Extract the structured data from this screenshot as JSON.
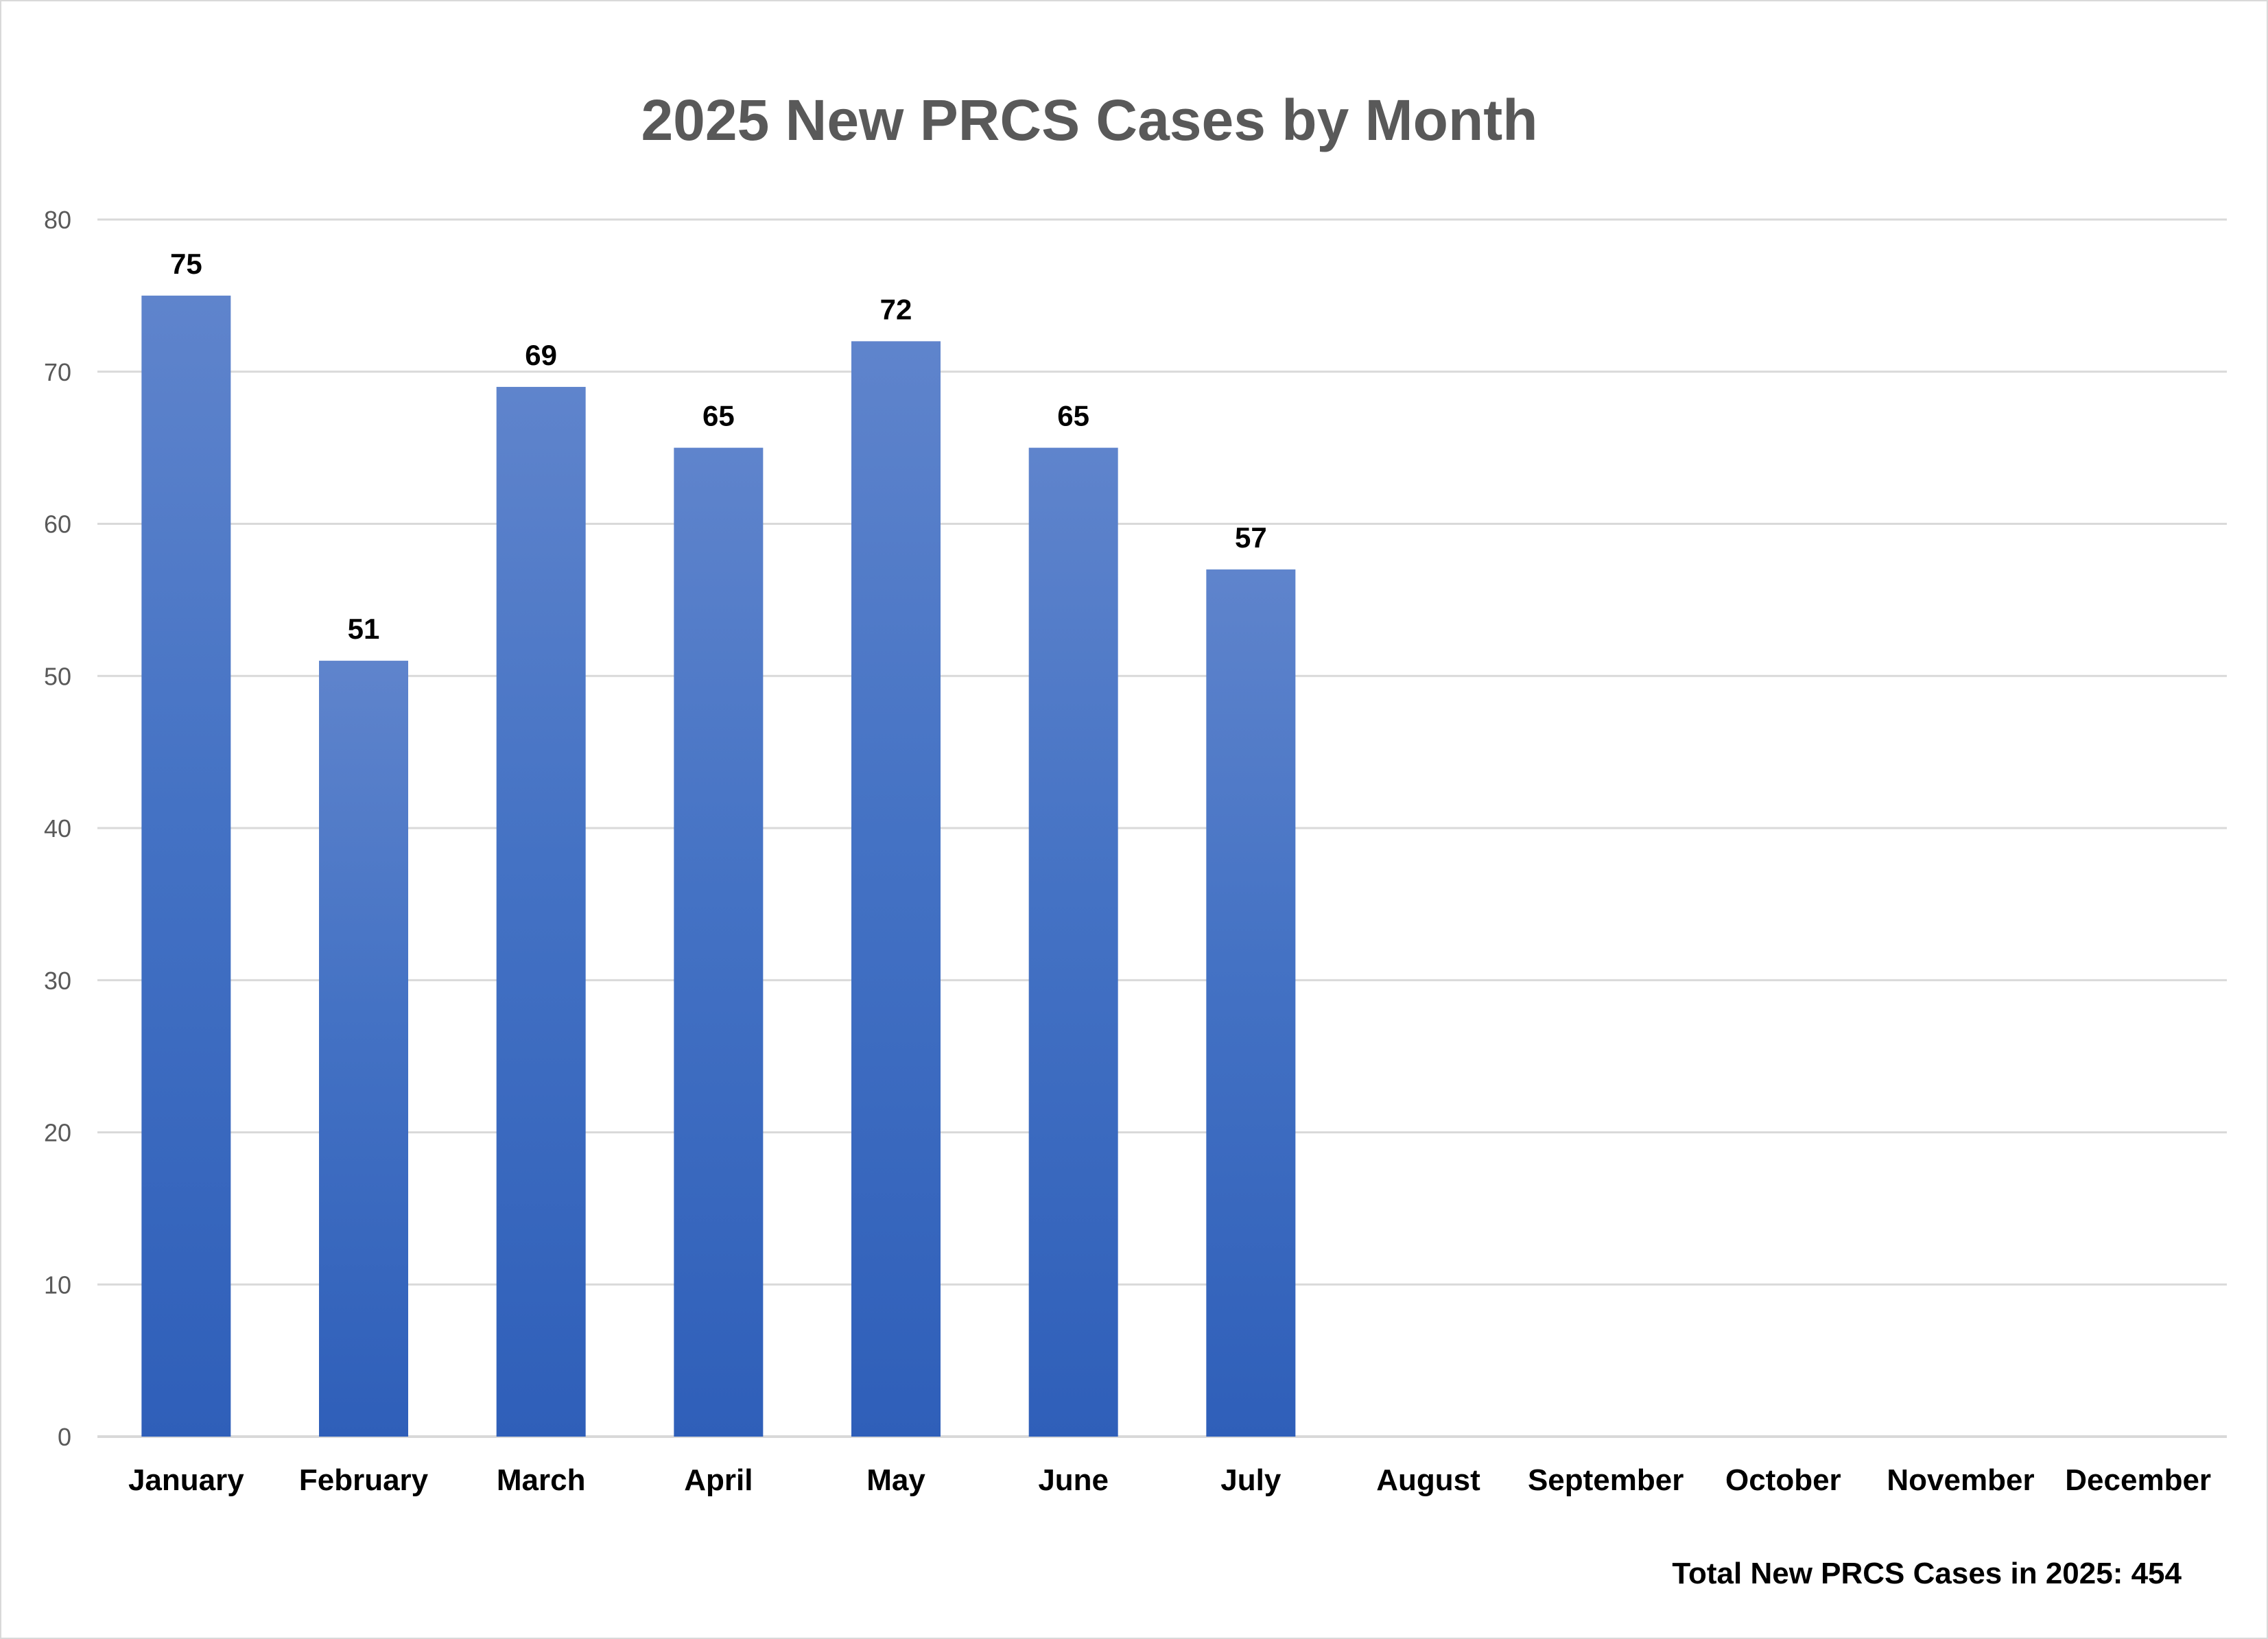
{
  "chart_data": {
    "type": "bar",
    "title": "2025 New PRCS Cases by Month",
    "categories": [
      "January",
      "February",
      "March",
      "April",
      "May",
      "June",
      "July",
      "August",
      "September",
      "October",
      "November",
      "December"
    ],
    "values": [
      75,
      51,
      69,
      65,
      72,
      65,
      57,
      null,
      null,
      null,
      null,
      null
    ],
    "data_labels": [
      "75",
      "51",
      "69",
      "65",
      "72",
      "65",
      "57",
      "",
      "",
      "",
      "",
      ""
    ],
    "ylim": [
      0,
      80
    ],
    "y_ticks": [
      "0",
      "10",
      "20",
      "30",
      "40",
      "50",
      "60",
      "70",
      "80"
    ],
    "grid": true,
    "legend": "none",
    "xlabel": "",
    "ylabel": "",
    "bar_color_top": "#5f84cc",
    "bar_color_mid": "#4472c4",
    "bar_color_bottom": "#2f5fb9",
    "annotation": "Total New PRCS Cases in 2025: 454"
  }
}
